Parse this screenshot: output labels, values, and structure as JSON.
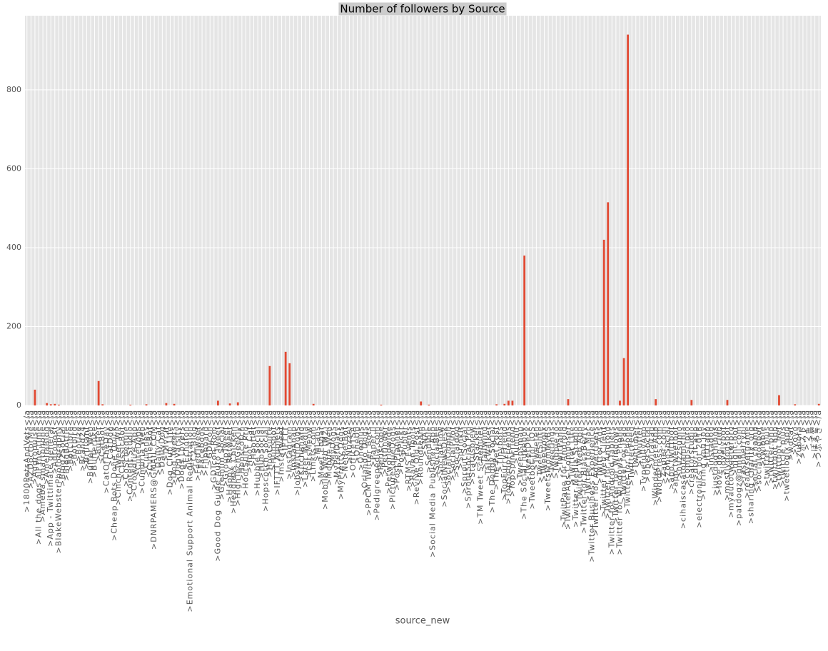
{
  "chart_data": {
    "type": "bar",
    "title": "Number of followers by Source",
    "x_label": "source_new",
    "color": "#E24A33",
    "grid": true,
    "ylim": [
      0,
      988
    ],
    "yticks": [
      0,
      200,
      400,
      600,
      800
    ],
    "categories": [
      ">1800PetsAndVets</a",
      ">AZDoctorMe</a",
      ">Aggropulse</a",
      ">All the dogs all the time</a",
      ">Ameba smartphone</a",
      ">AmeliaBlog</a",
      ">App - Twittimate general</a",
      ">Autopost</a",
      ">BlakeWebsterPhotography</a",
      ">Blog2Social</a",
      ">BlogBottle</a",
      ">BotLibre</a",
      ">Botbird</a",
      ">Botize</a",
      ">Brand24</a",
      ">Brilliant</a",
      ">Buffer Web</a",
      ">Bufferlike</a",
      ">Buffer</a",
      ">CatBot</a",
      ">CatOfTheDay</a",
      ">CatDog</a",
      ">Cheap Bots Done Quick</a",
      ">Cinch Tweet WP</a",
      ">ClassicBot</a",
      ">CoSchedule</a",
      ">Content Studio</a",
      ">Crowdfire App</a",
      ">CuteDogs</a",
      ">Cumbria Web</a",
      ">Cuteness</a",
      ">CutiesBot</a",
      ">DNRPAMERS@GMAIL.COM</a",
      ">Daily Cat</a",
      ">DailyDog</a",
      ">Dlvr.it</a",
      ">Dog Club Life</a",
      ">Dog Tweets</a",
      ">DogVarsity</a",
      ">Dogs Lovers</a",
      ">Echofon</a",
      ">Emotional Support Animal Registration</a",
      ">FC2 Blog</a",
      ">FeedTweet</a",
      ">Facebook</a",
      ">Flipboard</a",
      ">GDIcon</a",
      ">GDTcon Rom</a",
      ">Good Dog Guide Auto Tweet</a",
      ">Gremlin Social</a",
      ">GroupTweet</a",
      ">Happy Retweet</a",
      ">Headless Chicken</a",
      ">HighTechGeekly</a",
      ">Hopscotch</a",
      ">HootSuite Pro</a",
      ">Hoot Cat</a",
      ">Hootlet</a",
      ">Hubble Social</a",
      ">HubSocial</a",
      ">Hopscotch Social</a",
      ">Hootsuite</a",
      ">Hubspot</a",
      ">IFTTT Applets</a",
      ">InstaTweet</a",
      ">IFTTT</a",
      ">Instagram</a",
      ">Instasnap</a",
      ">JobsWithDogs</a",
      ">KitchenAid</a",
      ">Later Media</a",
      ">LetsMeow</a",
      ">Linkis.com</a",
      ">MLabs</a",
      ">Meet Edgar</a",
      ">Mobile Web (M2)</a",
      ">Mobile Web</a",
      ">MyDogs</a",
      ">MyPetDiary</a",
      ">MyPretty Dogs</a",
      ">NetPetBot</a",
      ">Nuzzel</a",
      ">OfficeTSA</a",
      ">OneUp</a",
      ">Oneplus</a",
      ">Orlando Dogs</a",
      ">PPCM Twitter Bots</a",
      ">Paper.li</a",
      ">Pedigreepedia.com</a",
      ">Periscope</a",
      ">Petfinder</a",
      ">Petworldwide</a",
      ">PicturesqueDogs</a",
      ">Post Planner</a",
      ">PostPickr</a",
      ">Publer</a",
      ">RTMS Events</a",
      ">Raven Tools</a",
      ">Revive Old Post</a",
      ">Roundteam</a",
      ">SNAP</a",
      ">Sendible</a",
      ">Social Media Publisher App</a",
      ">SocialBee</a",
      ">SocialFlow</a",
      ">SocialNewsDesk</a",
      ">SocialOomph</a",
      ">SocialPilot</a",
      ">Socialdog</a",
      ">Sprinklr</a",
      ">Sprout Social</a",
      ">SproutSocial Pro</a",
      ">Statusbrew</a",
      ">Stacker</a",
      ">TM Tweet Scheduler</a",
      ">Tailwind</a",
      ">TalkWalker</a",
      ">The Doggy Social</a",
      ">The Pet Post</a",
      ">Tinybots</a",
      ">TopFurryFriend</a",
      ">TopShopFriends</a",
      ">TopSpinFriend</a",
      ">Tumblr</a",
      ">Tweepsmap</a",
      ">The Social Jukebox</a",
      ">TweetDeck</a",
      ">Tweetbot for iOS</a",
      ">Tweeten</a",
      ">TweetSuite</a",
      ">Tweetlogix</a",
      ">TweetsFromMyBS</a",
      ">Tweetings</a",
      ">Twibble.io</a",
      ">TwitPane</a",
      ">TwitPane for Android</a",
      ">TwitterAds Composer</a",
      ">Twitter Lite</a",
      ">Twitter Media Studio</a",
      ">Twitter Web App</a",
      ">Twitter for BlackBerry</a",
      ">Twitter for Mac</a",
      ">Twitter Business Experience</a",
      ">Twitter for Advertisers</a",
      ">Twitter Ads</a",
      ">Twitter Web Client</a",
      ">Twitter for Android</a",
      ">Twitter for Android Tablets</a",
      ">Twitter for Windows</a",
      ">Twitter for Windows Phone</a",
      ">Twitter for iPad</a",
      ">Twitter for iPhone</a",
      ">TwitterFeed</a",
      ">Twittimer</a",
      ">Twuffer</a",
      ">TypefullyApp</a",
      ">UberSocial</a",
      ">Viraltag</a",
      ">WindermereApp</a",
      ">WordPress.com</a",
      ">Zapier.com</a",
      ">ZohoSocial</a",
      ">app.twittbot</a",
      ">app.tweetbot</a",
      ">buzzsumo</a",
      ">cihaiscasatolamichia</a",
      ">compscipro</a",
      ">creatorstudio</a",
      ">dlvr.it app</a",
      ">electronics bot 2018</a",
      ">i bring you joy</a",
      ">iftttapp</a",
      ">instadog</a",
      ">justdogthings</a",
      ">love dog club</a",
      ">lovelybot</a",
      ">mostlydogsbot</a",
      ">myautotweeterpro</a",
      ">night-bot</a",
      ">patdogz@gmail.com</a",
      ">raspberrypi</a",
      ">readysetgame</a",
      ">sharing_charity_org</a",
      ">social champ</a",
      ">socialdogbot</a",
      ">twibble</a",
      ">twitter plus</a",
      ">twitter.php</a",
      ">twittbot app</a",
      ">twittbot.net</a",
      ">twitcle plus</a",
      ">tweetlogix app</a",
      ">wdcat</a",
      ">yoyo</a",
      ">zubora</a",
      ">ポスト</a",
      ">ツイ</a",
      ">鳥</a",
      ">ぽすと</a",
      ">つぶやき</a"
    ],
    "values": [
      0,
      0,
      40,
      0,
      0,
      6,
      3,
      4,
      2,
      0,
      0,
      0,
      0,
      0,
      0,
      0,
      0,
      0,
      62,
      3,
      0,
      0,
      0,
      0,
      0,
      0,
      2,
      0,
      0,
      0,
      3,
      0,
      0,
      0,
      0,
      6,
      0,
      4,
      0,
      0,
      0,
      0,
      0,
      0,
      0,
      0,
      0,
      0,
      12,
      0,
      0,
      5,
      0,
      8,
      0,
      0,
      0,
      0,
      0,
      0,
      0,
      100,
      0,
      0,
      0,
      136,
      107,
      0,
      0,
      0,
      0,
      0,
      4,
      0,
      0,
      0,
      0,
      0,
      0,
      0,
      0,
      0,
      0,
      0,
      0,
      0,
      0,
      0,
      0,
      2,
      0,
      0,
      0,
      0,
      0,
      0,
      0,
      0,
      0,
      10,
      0,
      2,
      0,
      0,
      0,
      0,
      0,
      0,
      0,
      0,
      0,
      0,
      0,
      0,
      0,
      0,
      0,
      0,
      3,
      0,
      4,
      12,
      12,
      0,
      0,
      380,
      0,
      0,
      0,
      0,
      0,
      0,
      0,
      0,
      0,
      0,
      16,
      0,
      0,
      0,
      0,
      0,
      0,
      0,
      0,
      420,
      515,
      0,
      0,
      12,
      120,
      940,
      0,
      0,
      0,
      0,
      0,
      0,
      16,
      0,
      0,
      0,
      0,
      0,
      0,
      0,
      0,
      14,
      0,
      0,
      0,
      0,
      0,
      0,
      0,
      0,
      14,
      0,
      0,
      0,
      0,
      0,
      0,
      0,
      0,
      0,
      0,
      0,
      0,
      26,
      0,
      0,
      0,
      3,
      0,
      0,
      0,
      0,
      0,
      4
    ]
  }
}
